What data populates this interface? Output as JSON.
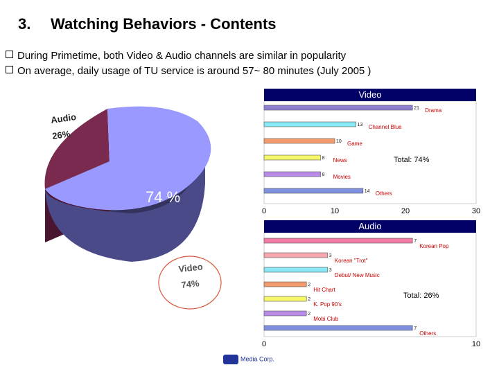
{
  "title": {
    "number": "3.",
    "text": "Watching Behaviors - Contents"
  },
  "bullets": [
    "During Primetime, both Video & Audio channels are similar in popularity",
    "On average, daily usage of TU service is around 57~ 80 minutes (July 2005 )"
  ],
  "pie_labels": {
    "audio_name": "Audio",
    "audio_pct": "26%",
    "center_pct": "74 %",
    "video_name": "Video",
    "video_pct": "74%"
  },
  "colors": {
    "audio_slice": "#7a2a4f",
    "video_slice": "#9999ff",
    "header": "#000066",
    "highlight": "#d9573a"
  },
  "footer": {
    "logo_text": "Media Corp."
  },
  "chart_data": [
    {
      "type": "bar",
      "title": "Video",
      "categories": [
        "Drama",
        "Channel Blue",
        "Game",
        "News",
        "Movies",
        "Others"
      ],
      "values": [
        21,
        13,
        10,
        8,
        8,
        14
      ],
      "colors": [
        "#8e7fd0",
        "#88e8f5",
        "#f39b6c",
        "#f7f76a",
        "#b88be6",
        "#7f90e0"
      ],
      "xlim": [
        0,
        30
      ],
      "xticks": [
        "0",
        "10",
        "20",
        "30"
      ],
      "annotation": "Total: 74%"
    },
    {
      "type": "bar",
      "title": "Audio",
      "categories": [
        "Korean Pop",
        "Korean \"Trot\"",
        "Debut/ New Music",
        "Hit Chart",
        "K. Pop 90's",
        "Mobi Club"
      ],
      "values": [
        7,
        3,
        3,
        2,
        2,
        2
      ],
      "colors": [
        "#f47aa8",
        "#f6a8ae",
        "#88e8f5",
        "#f39b6c",
        "#f7f76a",
        "#b88be6"
      ],
      "extra": {
        "label": "Others",
        "value": 7,
        "color": "#7f90e0"
      },
      "xlim": [
        0,
        10
      ],
      "xticks": [
        "0",
        "10"
      ],
      "annotation": "Total: 26%"
    }
  ]
}
